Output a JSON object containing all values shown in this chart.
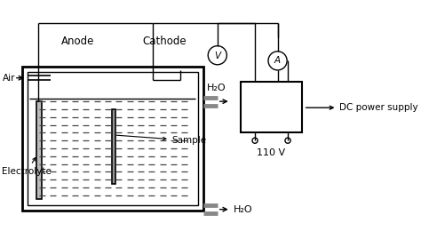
{
  "bg_color": "#ffffff",
  "line_color": "#000000",
  "labels": {
    "anode": "Anode",
    "cathode": "Cathode",
    "air": "Air",
    "h2o_top": "H₂O",
    "h2o_bottom": "H₂O",
    "electrolyte": "Electrolyte",
    "sample": "Sample",
    "dc_power": "DC power supply",
    "voltage": "110 V",
    "voltmeter": "V",
    "ammeter": "A"
  },
  "figsize": [
    4.74,
    2.6
  ],
  "dpi": 100
}
